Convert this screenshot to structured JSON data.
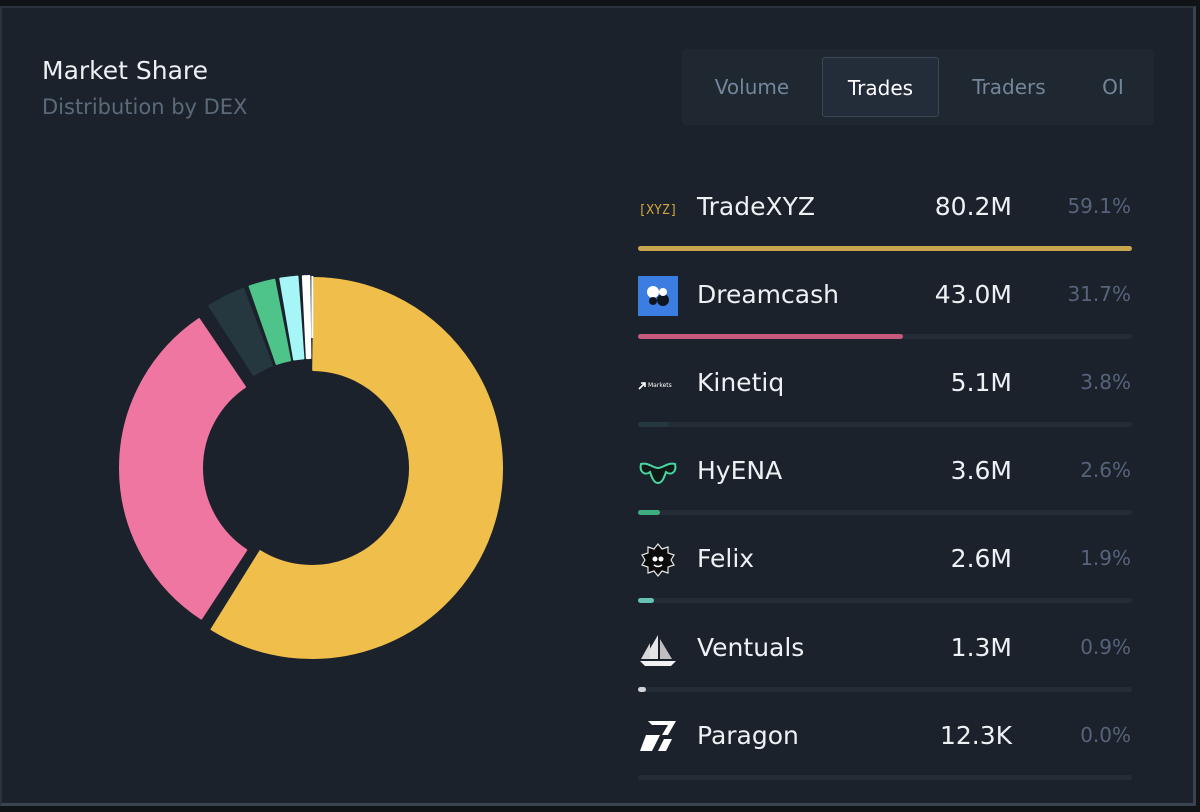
{
  "header": {
    "title": "Market Share",
    "subtitle": "Distribution by DEX"
  },
  "tabs": [
    {
      "label": "Volume",
      "active": false
    },
    {
      "label": "Trades",
      "active": true
    },
    {
      "label": "Traders",
      "active": false
    },
    {
      "label": "OI",
      "active": false
    }
  ],
  "chart_data": {
    "type": "pie",
    "variant": "donut",
    "title": "Market Share",
    "subtitle": "Distribution by DEX",
    "metric": "Trades",
    "categories": [
      "TradeXYZ",
      "Dreamcash",
      "Kinetiq",
      "HyENA",
      "Felix",
      "Ventuals",
      "Paragon"
    ],
    "values": [
      80.2,
      43.0,
      5.1,
      3.6,
      2.6,
      1.3,
      0.0123
    ],
    "value_unit": "M",
    "value_labels": [
      "80.2M",
      "43.0M",
      "5.1M",
      "3.6M",
      "2.6M",
      "1.3M",
      "12.3K"
    ],
    "percent_labels": [
      "59.1%",
      "31.7%",
      "3.8%",
      "2.6%",
      "1.9%",
      "0.9%",
      "0.0%"
    ],
    "colors": [
      "#f0be4a",
      "#ef76a0",
      "#253840",
      "#4ec48a",
      "#a6f5f7",
      "#ffffff",
      "#ffffff"
    ],
    "bar_colors": [
      "#c9a54d",
      "#c7587e",
      "#253840",
      "#3fae7e",
      "#67c2b4",
      "#d0d4d8",
      "#2a323b"
    ]
  },
  "legend": {
    "logos": [
      "xyz-logo",
      "dreamcash-logo",
      "kinetiq-logo",
      "hyena-logo",
      "felix-logo",
      "ventuals-logo",
      "paragon-logo"
    ],
    "xyz_text": "[XYZ]",
    "kinetiq_text": "Markets"
  }
}
